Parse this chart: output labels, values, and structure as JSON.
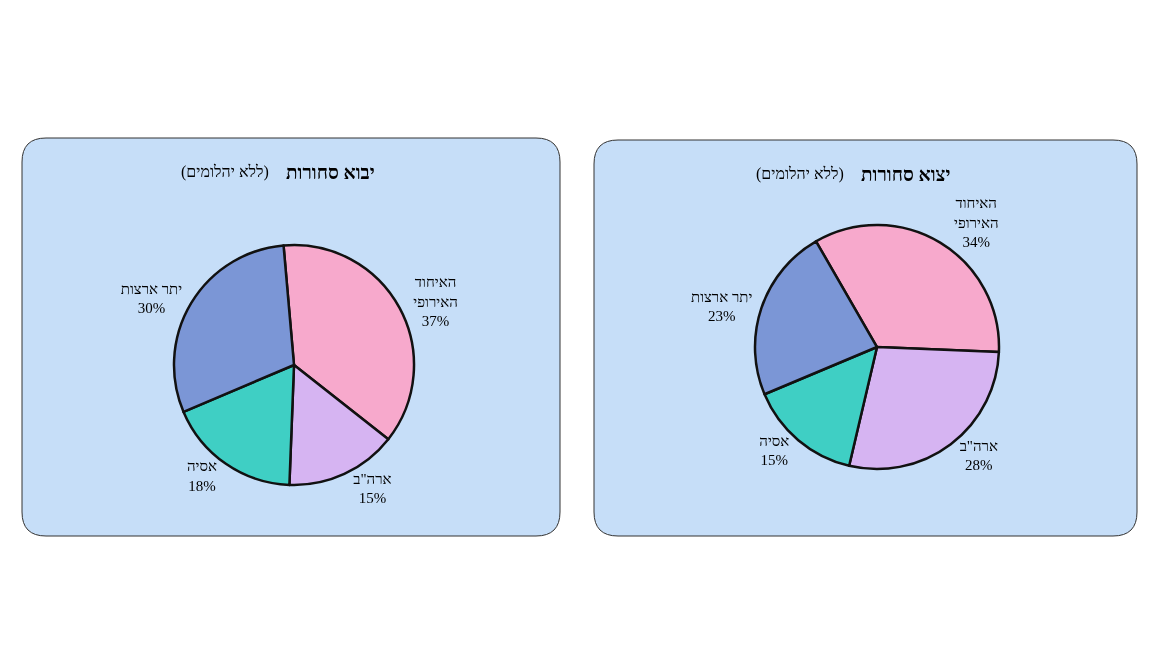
{
  "chart_data": [
    {
      "type": "pie",
      "title": "יבוא סחורות",
      "subtitle": "(ללא יהלומים)",
      "categories": [
        "האיחוד האירופי",
        "ארה\"ב",
        "אסיה",
        "יתר ארצות"
      ],
      "values": [
        37,
        15,
        18,
        30
      ],
      "value_labels": [
        "37%",
        "15%",
        "18%",
        "30%"
      ],
      "colors": [
        "#f7a9cc",
        "#d6b4f2",
        "#3fcfc4",
        "#7b96d6"
      ]
    },
    {
      "type": "pie",
      "title": "יצוא סחורות",
      "subtitle": "(ללא יהלומים)",
      "categories": [
        "האיחוד האירופי",
        "ארה\"ב",
        "אסיה",
        "יתר ארצות"
      ],
      "values": [
        34,
        28,
        15,
        23
      ],
      "value_labels": [
        "34%",
        "28%",
        "15%",
        "23%"
      ],
      "colors": [
        "#f7a9cc",
        "#d6b4f2",
        "#3fcfc4",
        "#7b96d6"
      ]
    }
  ]
}
